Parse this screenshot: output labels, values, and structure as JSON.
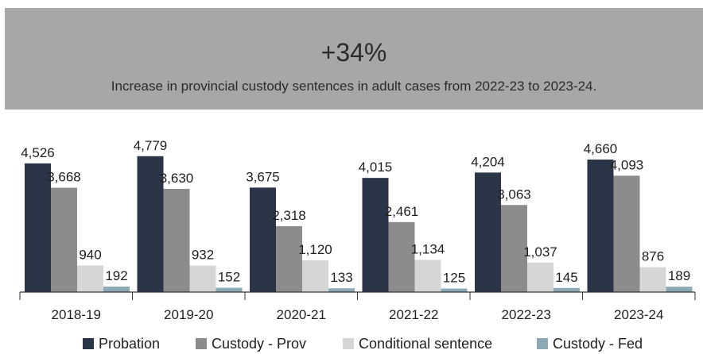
{
  "banner": {
    "headline": "+34%",
    "subtitle": "Increase in provincial custody sentences in adult cases from 2022-23 to 2023-24."
  },
  "chart_data": {
    "type": "bar",
    "categories": [
      "2018-19",
      "2019-20",
      "2020-21",
      "2021-22",
      "2022-23",
      "2023-24"
    ],
    "series": [
      {
        "name": "Probation",
        "color": "#2b3547",
        "values": [
          4526,
          4779,
          3675,
          4015,
          4204,
          4660
        ],
        "labels": [
          "4,526",
          "4,779",
          "3,675",
          "4,015",
          "4,204",
          "4,660"
        ]
      },
      {
        "name": "Custody - Prov",
        "color": "#8c8c8c",
        "values": [
          3668,
          3630,
          2318,
          2461,
          3063,
          4093
        ],
        "labels": [
          "3,668",
          "3,630",
          "2,318",
          "2,461",
          "3,063",
          "4,093"
        ]
      },
      {
        "name": "Conditional sentence",
        "color": "#d6d6d6",
        "values": [
          940,
          932,
          1120,
          1134,
          1037,
          876
        ],
        "labels": [
          "940",
          "932",
          "1,120",
          "1,134",
          "1,037",
          "876"
        ]
      },
      {
        "name": "Custody - Fed",
        "color": "#8aa9b5",
        "values": [
          192,
          152,
          133,
          125,
          145,
          189
        ],
        "labels": [
          "192",
          "152",
          "133",
          "125",
          "145",
          "189"
        ]
      }
    ],
    "ylim": [
      0,
      5000
    ],
    "grid": false,
    "legend": "bottom"
  }
}
